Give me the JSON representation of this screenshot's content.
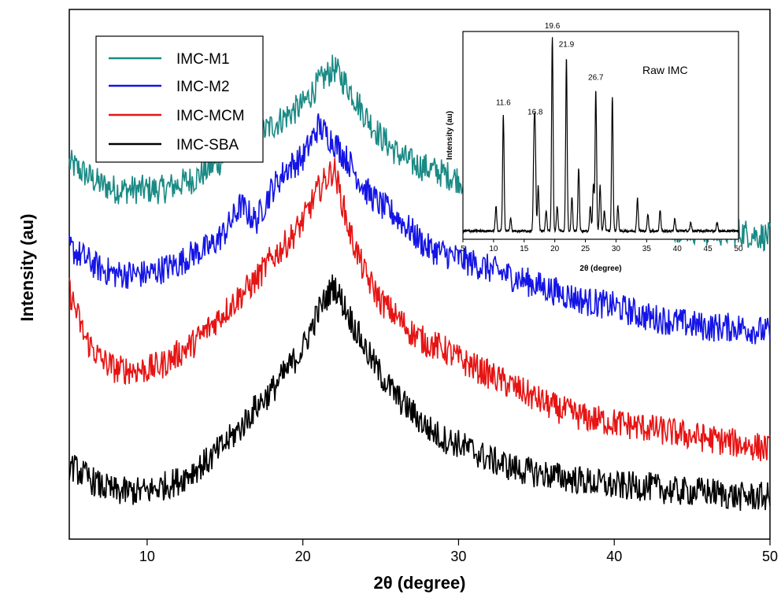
{
  "chart_data": [
    {
      "type": "line",
      "title": "",
      "xlabel": "2θ (degree)",
      "ylabel": "Intensity (au)",
      "xlim": [
        5,
        50
      ],
      "xticks": [
        10,
        20,
        30,
        40,
        50
      ],
      "xtick_labels": [
        "10",
        "20",
        "30",
        "40",
        "50"
      ],
      "yticks_shown": false,
      "grid": false,
      "legend_position": "top-left",
      "series": [
        {
          "name": "IMC-M1",
          "color": "#1a8a85",
          "x": [
            5,
            6,
            7,
            8,
            9,
            10,
            11,
            12,
            13,
            14,
            15,
            16,
            17,
            18,
            19,
            20,
            21,
            22,
            23,
            24,
            25,
            26,
            27,
            28,
            29,
            30,
            32,
            34,
            36,
            38,
            40,
            42,
            44,
            46,
            48,
            50
          ],
          "y": [
            0.71,
            0.69,
            0.67,
            0.66,
            0.66,
            0.66,
            0.66,
            0.67,
            0.68,
            0.7,
            0.72,
            0.75,
            0.76,
            0.78,
            0.8,
            0.82,
            0.86,
            0.89,
            0.85,
            0.8,
            0.76,
            0.73,
            0.71,
            0.7,
            0.69,
            0.68,
            0.66,
            0.65,
            0.63,
            0.62,
            0.61,
            0.6,
            0.59,
            0.58,
            0.58,
            0.57
          ]
        },
        {
          "name": "IMC-M2",
          "color": "#1414e6",
          "x": [
            5,
            6,
            7,
            8,
            9,
            10,
            11,
            12,
            13,
            14,
            15,
            16,
            17,
            18,
            19,
            20,
            21,
            22,
            23,
            24,
            25,
            26,
            27,
            28,
            29,
            30,
            32,
            34,
            36,
            38,
            40,
            42,
            44,
            46,
            48,
            50
          ],
          "y": [
            0.55,
            0.53,
            0.51,
            0.5,
            0.5,
            0.5,
            0.51,
            0.52,
            0.54,
            0.55,
            0.58,
            0.63,
            0.6,
            0.66,
            0.7,
            0.72,
            0.78,
            0.75,
            0.71,
            0.66,
            0.63,
            0.61,
            0.58,
            0.55,
            0.54,
            0.53,
            0.51,
            0.49,
            0.47,
            0.45,
            0.44,
            0.42,
            0.41,
            0.4,
            0.4,
            0.39
          ]
        },
        {
          "name": "IMC-MCM",
          "color": "#e61414",
          "x": [
            5,
            6,
            7,
            8,
            9,
            10,
            11,
            12,
            13,
            14,
            15,
            16,
            17,
            18,
            19,
            20,
            21,
            22,
            23,
            24,
            25,
            26,
            27,
            28,
            29,
            30,
            32,
            34,
            36,
            38,
            40,
            42,
            44,
            46,
            48,
            50
          ],
          "y": [
            0.47,
            0.38,
            0.34,
            0.32,
            0.32,
            0.32,
            0.33,
            0.35,
            0.37,
            0.4,
            0.43,
            0.46,
            0.49,
            0.53,
            0.56,
            0.6,
            0.66,
            0.7,
            0.58,
            0.5,
            0.45,
            0.42,
            0.39,
            0.37,
            0.36,
            0.34,
            0.31,
            0.28,
            0.25,
            0.23,
            0.22,
            0.21,
            0.2,
            0.19,
            0.18,
            0.17
          ]
        },
        {
          "name": "IMC-SBA",
          "color": "#000000",
          "x": [
            5,
            6,
            7,
            8,
            9,
            10,
            11,
            12,
            13,
            14,
            15,
            16,
            17,
            18,
            19,
            20,
            21,
            22,
            23,
            24,
            25,
            26,
            27,
            28,
            29,
            30,
            32,
            34,
            36,
            38,
            40,
            42,
            44,
            46,
            48,
            50
          ],
          "y": [
            0.14,
            0.12,
            0.1,
            0.09,
            0.09,
            0.09,
            0.1,
            0.11,
            0.13,
            0.15,
            0.18,
            0.21,
            0.25,
            0.28,
            0.32,
            0.36,
            0.43,
            0.48,
            0.42,
            0.36,
            0.31,
            0.27,
            0.24,
            0.21,
            0.19,
            0.18,
            0.15,
            0.13,
            0.12,
            0.11,
            0.1,
            0.1,
            0.09,
            0.09,
            0.08,
            0.08
          ]
        }
      ]
    },
    {
      "type": "line",
      "title": "Raw IMC",
      "xlabel": "2θ (degree)",
      "ylabel": "Intensity (au)",
      "xlim": [
        5,
        50
      ],
      "xticks": [
        5,
        10,
        15,
        20,
        25,
        30,
        35,
        40,
        45,
        50
      ],
      "xtick_labels": [
        "5",
        "10",
        "15",
        "20",
        "25",
        "30",
        "35",
        "40",
        "45",
        "50"
      ],
      "yticks_shown": false,
      "grid": false,
      "baseline": 0.04,
      "series": [
        {
          "name": "",
          "color": "#000000",
          "peaks": [
            {
              "x": 10.4,
              "height": 0.12
            },
            {
              "x": 11.6,
              "height": 0.56
            },
            {
              "x": 12.8,
              "height": 0.06
            },
            {
              "x": 16.6,
              "height": 0.38
            },
            {
              "x": 16.8,
              "height": 0.42
            },
            {
              "x": 17.3,
              "height": 0.22
            },
            {
              "x": 18.6,
              "height": 0.1
            },
            {
              "x": 19.6,
              "height": 0.93
            },
            {
              "x": 20.4,
              "height": 0.12
            },
            {
              "x": 21.9,
              "height": 0.84
            },
            {
              "x": 22.8,
              "height": 0.16
            },
            {
              "x": 23.9,
              "height": 0.3
            },
            {
              "x": 25.8,
              "height": 0.12
            },
            {
              "x": 26.3,
              "height": 0.22
            },
            {
              "x": 26.7,
              "height": 0.68
            },
            {
              "x": 27.4,
              "height": 0.22
            },
            {
              "x": 28.1,
              "height": 0.1
            },
            {
              "x": 29.4,
              "height": 0.65
            },
            {
              "x": 30.3,
              "height": 0.12
            },
            {
              "x": 33.5,
              "height": 0.16
            },
            {
              "x": 35.2,
              "height": 0.08
            },
            {
              "x": 37.2,
              "height": 0.1
            },
            {
              "x": 39.6,
              "height": 0.06
            },
            {
              "x": 42.2,
              "height": 0.04
            },
            {
              "x": 46.5,
              "height": 0.04
            }
          ]
        }
      ],
      "annotations": [
        "11.6",
        "16.8",
        "19.6",
        "21.9",
        "26.7"
      ]
    }
  ]
}
